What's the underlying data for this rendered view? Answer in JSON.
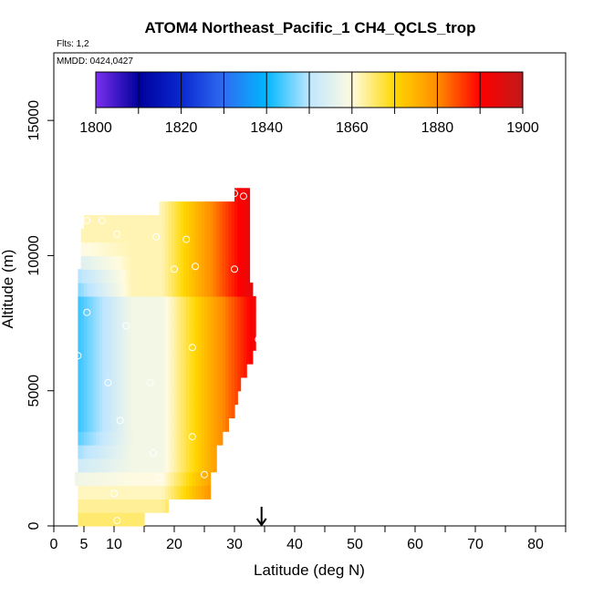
{
  "chart_data": {
    "type": "heatmap",
    "title": "ATOM4 Northeast_Pacific_1 CH4_QCLS_trop",
    "flights_label": "Flts: 1,2",
    "mmdd_label": "MMDD: 0424,0427",
    "xlabel": "Latitude (deg N)",
    "ylabel": "Altitude (m)",
    "xlim": [
      0,
      85
    ],
    "ylim": [
      0,
      17500
    ],
    "x_ticks": [
      0,
      5,
      10,
      20,
      30,
      40,
      50,
      60,
      70,
      80
    ],
    "x_minor_ticks": [
      15,
      25,
      35,
      45,
      55,
      65,
      75,
      85
    ],
    "y_ticks": [
      0,
      5000,
      10000,
      15000
    ],
    "colorbar": {
      "min": 1800,
      "max": 1900,
      "step": 10,
      "tick_labels": [
        "1800",
        "1820",
        "1840",
        "1860",
        "1880",
        "1900"
      ],
      "colors": [
        "#7b2ff0",
        "#00009b",
        "#0a28d0",
        "#2f6cf0",
        "#00b8ff",
        "#bfe6ff",
        "#fffbe0",
        "#ffd700",
        "#ff8c00",
        "#ff0000",
        "#bf1a1a"
      ]
    },
    "arrow_marker_lat": 34.5,
    "band_latitude_extent": [
      {
        "alt_range": [
          0,
          500
        ],
        "lat": [
          4,
          15
        ]
      },
      {
        "alt_range": [
          500,
          1000
        ],
        "lat": [
          4,
          19
        ]
      },
      {
        "alt_range": [
          1000,
          1500
        ],
        "lat": [
          4,
          26
        ]
      },
      {
        "alt_range": [
          1500,
          2000
        ],
        "lat": [
          3.5,
          26
        ]
      },
      {
        "alt_range": [
          2000,
          2500
        ],
        "lat": [
          4,
          27
        ]
      },
      {
        "alt_range": [
          2500,
          3000
        ],
        "lat": [
          4,
          27
        ]
      },
      {
        "alt_range": [
          3000,
          3500
        ],
        "lat": [
          4,
          28
        ]
      },
      {
        "alt_range": [
          3500,
          4000
        ],
        "lat": [
          4,
          29
        ]
      },
      {
        "alt_range": [
          4000,
          4500
        ],
        "lat": [
          4,
          30
        ]
      },
      {
        "alt_range": [
          4500,
          5000
        ],
        "lat": [
          4,
          30.5
        ]
      },
      {
        "alt_range": [
          5000,
          5500
        ],
        "lat": [
          4,
          31
        ]
      },
      {
        "alt_range": [
          5500,
          6000
        ],
        "lat": [
          4,
          32
        ]
      },
      {
        "alt_range": [
          6000,
          6500
        ],
        "lat": [
          4,
          33
        ]
      },
      {
        "alt_range": [
          6500,
          7000
        ],
        "lat": [
          4,
          33.5
        ]
      },
      {
        "alt_range": [
          7000,
          7500
        ],
        "lat": [
          4,
          33.5
        ]
      },
      {
        "alt_range": [
          7500,
          8000
        ],
        "lat": [
          4,
          33.5
        ]
      },
      {
        "alt_range": [
          8000,
          8500
        ],
        "lat": [
          4,
          33.5
        ]
      },
      {
        "alt_range": [
          8500,
          9000
        ],
        "lat": [
          4,
          33
        ]
      },
      {
        "alt_range": [
          9000,
          9500
        ],
        "lat": [
          4,
          32.5
        ]
      },
      {
        "alt_range": [
          9500,
          10000
        ],
        "lat": [
          4.5,
          32.5
        ]
      },
      {
        "alt_range": [
          10000,
          10500
        ],
        "lat": [
          4.5,
          32.5
        ]
      },
      {
        "alt_range": [
          10500,
          11000
        ],
        "lat": [
          4.5,
          32.5
        ]
      },
      {
        "alt_range": [
          11000,
          11500
        ],
        "lat": [
          5,
          32.5
        ]
      },
      {
        "alt_range": [
          11500,
          12000
        ],
        "lat": [
          17.5,
          32.5
        ]
      },
      {
        "alt_range": [
          12000,
          12500
        ],
        "lat": [
          30,
          32.5
        ]
      }
    ],
    "sample_points": [
      {
        "lat": 10.5,
        "alt": 200
      },
      {
        "lat": 10,
        "alt": 1200
      },
      {
        "lat": 17.5,
        "alt": 1800
      },
      {
        "lat": 25,
        "alt": 1900
      },
      {
        "lat": 16.5,
        "alt": 2700
      },
      {
        "lat": 23,
        "alt": 3300
      },
      {
        "lat": 11,
        "alt": 3900
      },
      {
        "lat": 9,
        "alt": 5300
      },
      {
        "lat": 16,
        "alt": 5300
      },
      {
        "lat": 4,
        "alt": 6300
      },
      {
        "lat": 23,
        "alt": 6600
      },
      {
        "lat": 34,
        "alt": 6900
      },
      {
        "lat": 12,
        "alt": 7400
      },
      {
        "lat": 5.5,
        "alt": 7900
      },
      {
        "lat": 20,
        "alt": 9500
      },
      {
        "lat": 23.5,
        "alt": 9600
      },
      {
        "lat": 30,
        "alt": 9500
      },
      {
        "lat": 17,
        "alt": 10700
      },
      {
        "lat": 22,
        "alt": 10600
      },
      {
        "lat": 10.5,
        "alt": 10800
      },
      {
        "lat": 5.5,
        "alt": 11300
      },
      {
        "lat": 8,
        "alt": 11300
      },
      {
        "lat": 30,
        "alt": 12300
      },
      {
        "lat": 31.5,
        "alt": 12200
      }
    ]
  }
}
